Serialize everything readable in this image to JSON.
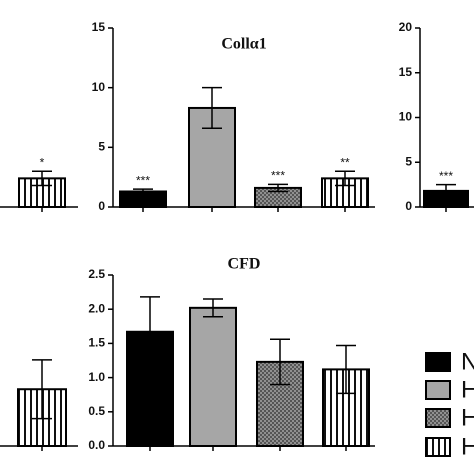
{
  "chart_data": [
    {
      "type": "bar",
      "styles": [
        "striped"
      ],
      "values": [
        2.4
      ],
      "errors": [
        0.6
      ],
      "annotations": [
        "*"
      ],
      "ylim": [
        0,
        15
      ]
    },
    {
      "type": "bar",
      "title": "Collα1",
      "styles": [
        "solid",
        "gray",
        "dotted",
        "striped"
      ],
      "values": [
        1.3,
        8.3,
        1.6,
        2.4
      ],
      "errors": [
        0.2,
        1.7,
        0.3,
        0.6
      ],
      "annotations": [
        "***",
        null,
        "***",
        "**"
      ],
      "ylim": [
        0,
        15
      ],
      "yticks": [
        0,
        5,
        10,
        15
      ]
    },
    {
      "type": "bar",
      "styles": [
        "solid"
      ],
      "values": [
        1.8
      ],
      "errors": [
        0.7
      ],
      "annotations": [
        "***"
      ],
      "ylim": [
        0,
        20
      ],
      "yticks": [
        0,
        5,
        10,
        15,
        20
      ]
    },
    {
      "type": "bar",
      "styles": [
        "striped"
      ],
      "values": [
        0.83
      ],
      "errors": [
        0.43
      ],
      "annotations": [
        null
      ],
      "ylim": [
        0,
        2.5
      ]
    },
    {
      "type": "bar",
      "title": "CFD",
      "styles": [
        "solid",
        "gray",
        "dotted",
        "striped"
      ],
      "values": [
        1.67,
        2.02,
        1.23,
        1.12
      ],
      "errors": [
        0.51,
        0.13,
        0.33,
        0.35
      ],
      "annotations": [
        null,
        null,
        null,
        null
      ],
      "ylim": [
        0,
        2.5
      ],
      "yticks": [
        {
          "value": 0,
          "label": "0.0"
        },
        {
          "value": 0.5,
          "label": "0.5"
        },
        {
          "value": 1,
          "label": "1.0"
        },
        {
          "value": 1.5,
          "label": "1.5"
        },
        {
          "value": 2,
          "label": "2.0"
        },
        {
          "value": 2.5,
          "label": "2.5"
        }
      ]
    }
  ],
  "legend": [
    {
      "label": "N",
      "style": "solid"
    },
    {
      "label": "H",
      "style": "gray"
    },
    {
      "label": "H",
      "style": "dotted"
    },
    {
      "label": "H",
      "style": "striped"
    }
  ]
}
